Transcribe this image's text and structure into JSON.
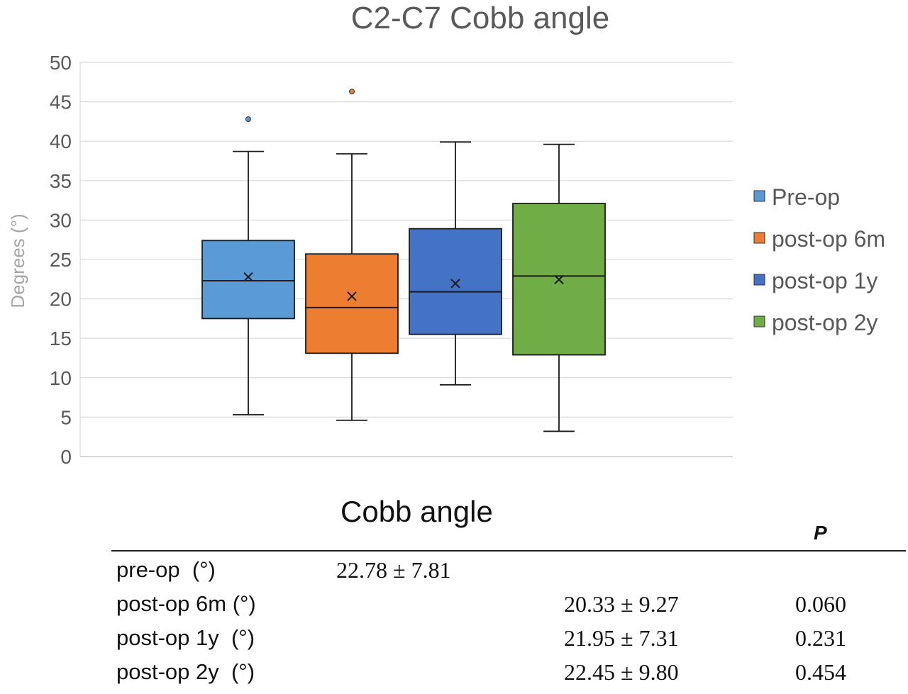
{
  "chart_data": {
    "type": "box",
    "title": "C2-C7 Cobb angle",
    "ylabel": "Degrees (°)",
    "xlabel": "",
    "ylim": [
      0,
      50
    ],
    "yticks": [
      0,
      5,
      10,
      15,
      20,
      25,
      30,
      35,
      40,
      45,
      50
    ],
    "grid": true,
    "legend_position": "right",
    "series": [
      {
        "name": "Pre-op",
        "color": "#5b9bd5",
        "min": 5.3,
        "q1": 17.5,
        "median": 22.3,
        "q3": 27.4,
        "max": 38.7,
        "mean": 22.78,
        "outliers": [
          42.8
        ]
      },
      {
        "name": "post-op 6m",
        "color": "#ed7d31",
        "min": 4.6,
        "q1": 13.1,
        "median": 18.9,
        "q3": 25.7,
        "max": 38.4,
        "mean": 20.33,
        "outliers": [
          46.3
        ]
      },
      {
        "name": "post-op 1y",
        "color": "#4472c4",
        "min": 9.1,
        "q1": 15.5,
        "median": 20.9,
        "q3": 28.9,
        "max": 39.9,
        "mean": 21.95,
        "outliers": []
      },
      {
        "name": "post-op 2y",
        "color": "#70ad47",
        "min": 3.2,
        "q1": 12.9,
        "median": 22.9,
        "q3": 32.1,
        "max": 39.6,
        "mean": 22.45,
        "outliers": []
      }
    ]
  },
  "table": {
    "title": "Cobb angle",
    "p_header": "P",
    "rows": [
      {
        "label": "pre-op  (°)",
        "value_pre": "22.78 ± 7.81",
        "value_post": "",
        "p": ""
      },
      {
        "label": "post-op 6m (°)",
        "value_pre": "",
        "value_post": "20.33 ± 9.27",
        "p": "0.060"
      },
      {
        "label": "post-op 1y  (°)",
        "value_pre": "",
        "value_post": "21.95 ± 7.31",
        "p": "0.231"
      },
      {
        "label": "post-op 2y  (°)",
        "value_pre": "",
        "value_post": "22.45 ± 9.80",
        "p": "0.454"
      }
    ]
  }
}
